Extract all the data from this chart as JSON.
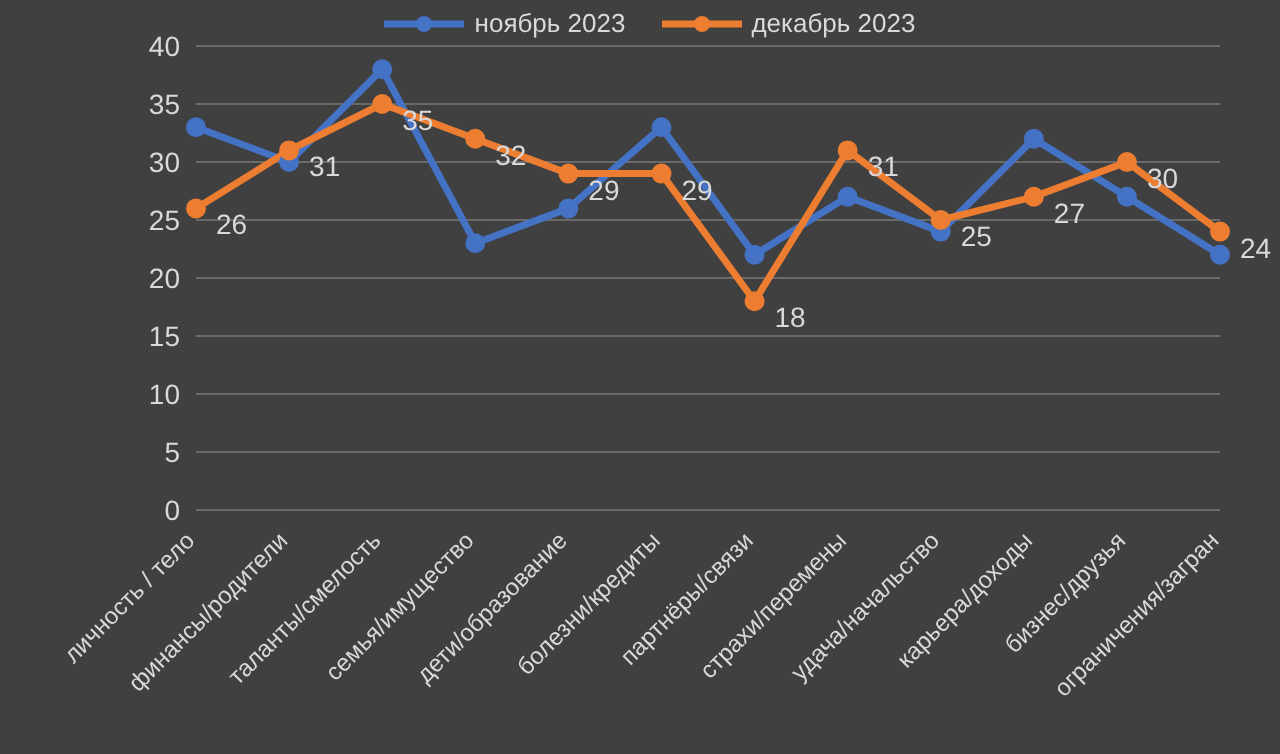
{
  "chart_data": {
    "type": "line",
    "categories": [
      "личность / тело",
      "финансы/родители",
      "таланты/смелость",
      "семья/имущество",
      "дети/образование",
      "болезни/кредиты",
      "партнёры/связи",
      "страхи/перемены",
      "удача/начальство",
      "карьера/доходы",
      "бизнес/друзья",
      "ограничения/загран"
    ],
    "series": [
      {
        "name": "ноябрь 2023",
        "color": "#4472c4",
        "values": [
          33,
          30,
          38,
          23,
          26,
          33,
          22,
          27,
          24,
          32,
          27,
          22
        ]
      },
      {
        "name": "декабрь 2023",
        "color": "#ed7d31",
        "values": [
          26,
          31,
          35,
          32,
          29,
          29,
          18,
          31,
          25,
          27,
          30,
          24
        ],
        "value_labels": [
          "26",
          "31",
          "35",
          "32",
          "29",
          "29",
          "18",
          "31",
          "25",
          "27",
          "30",
          "24"
        ]
      }
    ],
    "ylim": [
      0,
      40
    ],
    "yticks": [
      0,
      5,
      10,
      15,
      20,
      25,
      30,
      35,
      40
    ],
    "grid": "y",
    "legend": "top",
    "marker": "circle",
    "line_style": "solid"
  }
}
